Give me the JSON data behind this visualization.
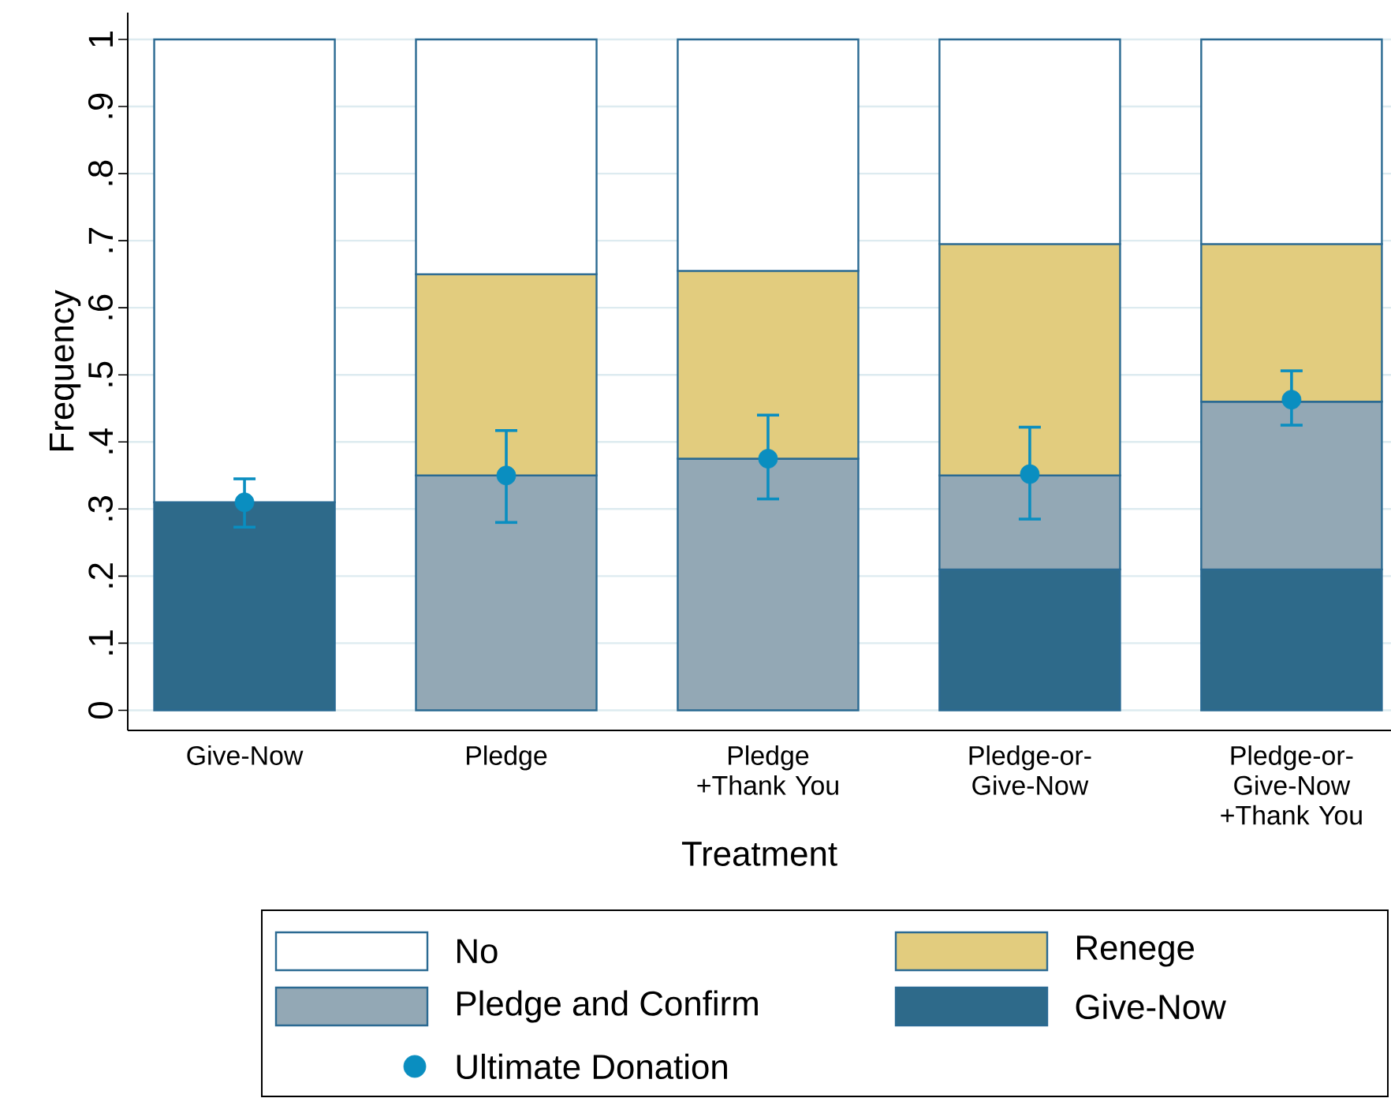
{
  "chart_data": {
    "type": "bar",
    "stacked": true,
    "xlabel": "Treatment",
    "ylabel": "Frequency",
    "categories": [
      "Give-Now",
      "Pledge",
      "Pledge +Thank You",
      "Pledge-or-Give-Now",
      "Pledge-or-Give-Now +Thank You"
    ],
    "ylim": [
      -0.03,
      1.04
    ],
    "yticks": [
      0,
      {
        "value": 0.1,
        "label": ".1"
      },
      {
        "value": 0.2,
        "label": ".2"
      },
      {
        "value": 0.3,
        "label": ".3"
      },
      {
        "value": 0.4,
        "label": ".4"
      },
      {
        "value": 0.5,
        "label": ".5"
      },
      {
        "value": 0.6,
        "label": ".6"
      },
      {
        "value": 0.7,
        "label": ".7"
      },
      {
        "value": 0.8,
        "label": ".8"
      },
      {
        "value": 0.9,
        "label": ".9"
      },
      1
    ],
    "grid": "y",
    "legend": "bottom",
    "series": [
      {
        "name": "Give-Now",
        "color": "#2e6a8a",
        "values": [
          0.31,
          null,
          null,
          0.21,
          0.21
        ]
      },
      {
        "name": "Pledge and Confirm",
        "color": "#93a8b5",
        "values": [
          null,
          0.35,
          0.375,
          0.14,
          0.25
        ]
      },
      {
        "name": "Renege",
        "color": "#e2cc7e",
        "values": [
          null,
          0.3,
          0.28,
          0.345,
          0.235
        ]
      },
      {
        "name": "No",
        "color": "#ffffff",
        "values": [
          0.69,
          0.35,
          0.345,
          0.305,
          0.305
        ]
      },
      {
        "name": "Ultimate Donation",
        "type": "scatter",
        "marker": "circle",
        "color": "#0a8ec0",
        "x": [
          "Give-Now",
          "Pledge",
          "Pledge +Thank You",
          "Pledge-or-Give-Now",
          "Pledge-or-Give-Now +Thank You"
        ],
        "values": [
          0.31,
          0.35,
          0.375,
          0.352,
          0.463
        ],
        "errors": [
          [
            0.273,
            0.345
          ],
          [
            0.28,
            0.417
          ],
          [
            0.315,
            0.44
          ],
          [
            0.285,
            0.422
          ],
          [
            0.425,
            0.506
          ]
        ]
      }
    ]
  }
}
